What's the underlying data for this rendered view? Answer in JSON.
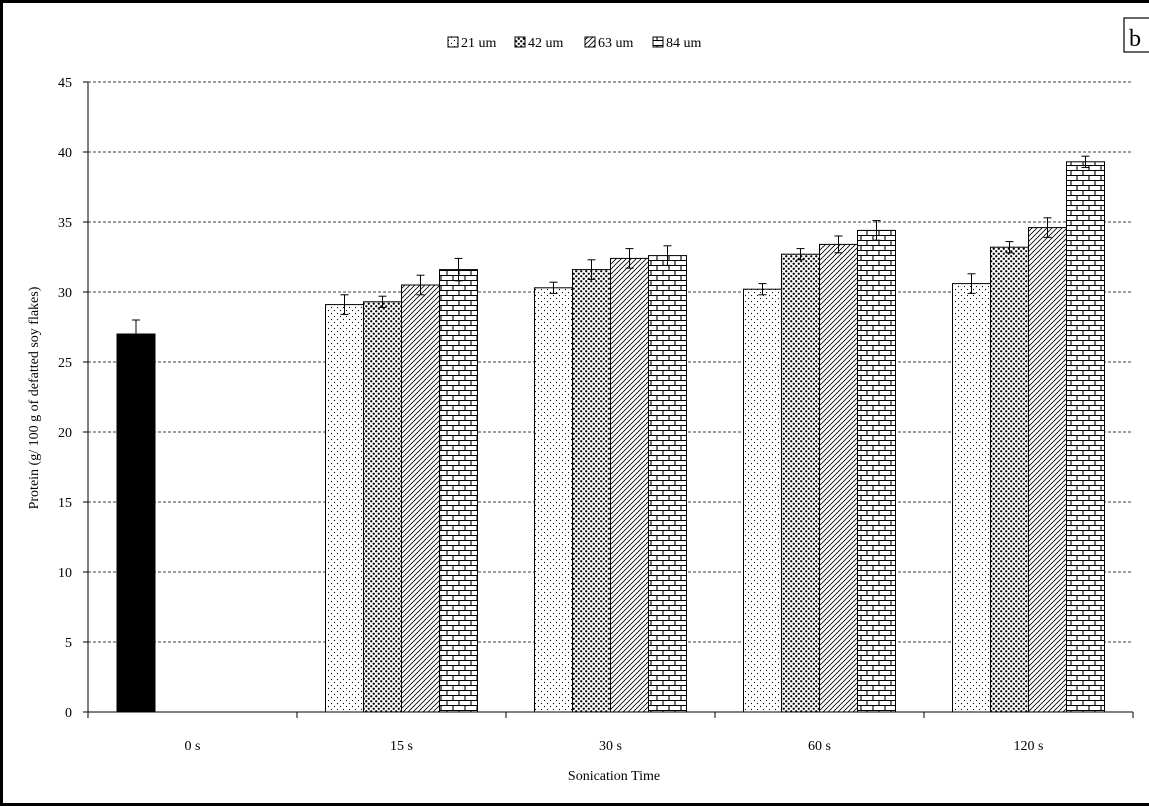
{
  "panel_label": "b",
  "colors": {
    "control": "#000000",
    "bar_fill": "#ffffff",
    "stroke": "#000000",
    "grid": "#000000"
  },
  "chart_data": {
    "type": "bar",
    "xlabel": "Sonication Time",
    "ylabel": "Protein (g/ 100 g of defatted soy flakes)",
    "ylim": [
      0,
      45
    ],
    "yticks": [
      0,
      5,
      10,
      15,
      20,
      25,
      30,
      35,
      40,
      45
    ],
    "grid": true,
    "legend_position": "top-center",
    "categories": [
      "0 s",
      "15 s",
      "30 s",
      "60 s",
      "120 s"
    ],
    "control": {
      "category": "0 s",
      "value": 27.0,
      "error": 1.0
    },
    "series": [
      {
        "name": "21 um",
        "pattern": "dots-light",
        "values": [
          null,
          29.1,
          30.3,
          30.2,
          30.6
        ],
        "errors": [
          null,
          0.7,
          0.4,
          0.4,
          0.7
        ]
      },
      {
        "name": "42 um",
        "pattern": "dots-dense",
        "values": [
          null,
          29.3,
          31.6,
          32.7,
          33.2
        ],
        "errors": [
          null,
          0.4,
          0.7,
          0.4,
          0.4
        ]
      },
      {
        "name": "63 um",
        "pattern": "diagonal",
        "values": [
          null,
          30.5,
          32.4,
          33.4,
          34.6
        ],
        "errors": [
          null,
          0.7,
          0.7,
          0.6,
          0.7
        ]
      },
      {
        "name": "84 um",
        "pattern": "brick",
        "values": [
          null,
          31.6,
          32.6,
          34.4,
          39.3
        ],
        "errors": [
          null,
          0.8,
          0.7,
          0.7,
          0.4
        ]
      }
    ]
  }
}
